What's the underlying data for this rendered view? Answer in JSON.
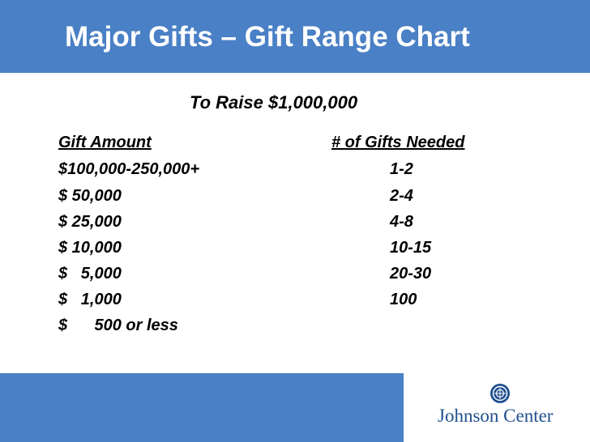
{
  "title": "Major Gifts – Gift Range Chart",
  "subtitle": "To Raise $1,000,000",
  "table": {
    "headers": [
      "Gift Amount",
      "# of Gifts Needed"
    ],
    "rows": [
      {
        "amount": "$100,000-250,000+",
        "gifts": "1-2"
      },
      {
        "amount": "$ 50,000",
        "gifts": "2-4"
      },
      {
        "amount": "$ 25,000",
        "gifts": "4-8"
      },
      {
        "amount": "$ 10,000",
        "gifts": "10-15"
      },
      {
        "amount": "$   5,000",
        "gifts": "20-30"
      },
      {
        "amount": "$   1,000",
        "gifts": "100"
      },
      {
        "amount": "$      500 or less",
        "gifts": ""
      }
    ]
  },
  "logo": {
    "text": "Johnson Center",
    "icon": "johnson-center-seal-icon"
  },
  "colors": {
    "header_bar": "#4a80c5",
    "footer_bar": "#4a80c5",
    "logo_text": "#1e4f8e"
  }
}
